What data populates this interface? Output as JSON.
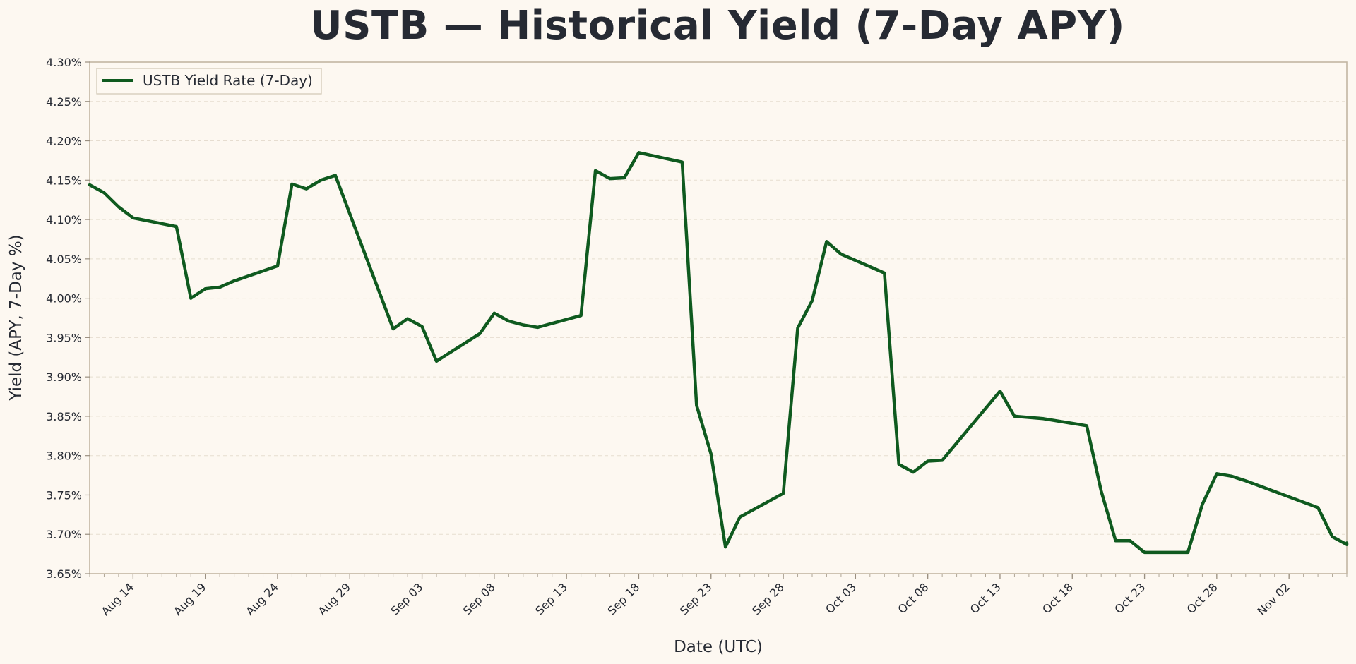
{
  "chart_data": {
    "type": "line",
    "title": "USTB — Historical Yield (7-Day APY)",
    "xlabel": "Date (UTC)",
    "ylabel": "Yield (APY, 7-Day %)",
    "ylim": [
      3.65,
      4.3
    ],
    "y_ticks": [
      3.65,
      3.7,
      3.75,
      3.8,
      3.85,
      3.9,
      3.95,
      4.0,
      4.05,
      4.1,
      4.15,
      4.2,
      4.25,
      4.3
    ],
    "y_tick_labels": [
      "3.65%",
      "3.70%",
      "3.75%",
      "3.80%",
      "3.85%",
      "3.90%",
      "3.95%",
      "4.00%",
      "4.05%",
      "4.10%",
      "4.15%",
      "4.20%",
      "4.25%",
      "4.30%"
    ],
    "xlim": [
      "2024-08-11",
      "2024-11-06"
    ],
    "x_ticks": [
      "2024-08-14",
      "2024-08-19",
      "2024-08-24",
      "2024-08-29",
      "2024-09-03",
      "2024-09-08",
      "2024-09-13",
      "2024-09-18",
      "2024-09-23",
      "2024-09-28",
      "2024-10-03",
      "2024-10-08",
      "2024-10-13",
      "2024-10-18",
      "2024-10-23",
      "2024-10-28",
      "2024-11-02"
    ],
    "x_tick_labels": [
      "Aug 14",
      "Aug 19",
      "Aug 24",
      "Aug 29",
      "Sep 03",
      "Sep 08",
      "Sep 13",
      "Sep 18",
      "Sep 23",
      "Sep 28",
      "Oct 03",
      "Oct 08",
      "Oct 13",
      "Oct 18",
      "Oct 23",
      "Oct 28",
      "Nov 02"
    ],
    "grid": "horizontal-dashed",
    "legend": "top-left",
    "series": [
      {
        "name": "USTB Yield Rate (7-Day)",
        "color": "#0f5a1f",
        "x": [
          "2024-08-11",
          "2024-08-12",
          "2024-08-13",
          "2024-08-14",
          "2024-08-17",
          "2024-08-18",
          "2024-08-19",
          "2024-08-20",
          "2024-08-21",
          "2024-08-24",
          "2024-08-25",
          "2024-08-26",
          "2024-08-27",
          "2024-08-28",
          "2024-09-01",
          "2024-09-02",
          "2024-09-03",
          "2024-09-04",
          "2024-09-07",
          "2024-09-08",
          "2024-09-09",
          "2024-09-10",
          "2024-09-11",
          "2024-09-14",
          "2024-09-15",
          "2024-09-16",
          "2024-09-17",
          "2024-09-18",
          "2024-09-21",
          "2024-09-22",
          "2024-09-23",
          "2024-09-24",
          "2024-09-25",
          "2024-09-28",
          "2024-09-29",
          "2024-09-30",
          "2024-10-01",
          "2024-10-02",
          "2024-10-05",
          "2024-10-06",
          "2024-10-07",
          "2024-10-08",
          "2024-10-09",
          "2024-10-13",
          "2024-10-14",
          "2024-10-16",
          "2024-10-19",
          "2024-10-20",
          "2024-10-21",
          "2024-10-22",
          "2024-10-23",
          "2024-10-26",
          "2024-10-27",
          "2024-10-28",
          "2024-10-29",
          "2024-10-30",
          "2024-11-04",
          "2024-11-05",
          "2024-11-06",
          "2024-11-07"
        ],
        "values": [
          4.144,
          4.134,
          4.116,
          4.102,
          4.091,
          4.0,
          4.012,
          4.014,
          4.022,
          4.041,
          4.145,
          4.139,
          4.15,
          4.156,
          3.961,
          3.974,
          3.964,
          3.92,
          3.955,
          3.981,
          3.971,
          3.966,
          3.963,
          3.978,
          4.162,
          4.152,
          4.153,
          4.185,
          4.173,
          3.864,
          3.802,
          3.684,
          3.722,
          3.752,
          3.962,
          3.997,
          4.072,
          4.056,
          4.032,
          3.789,
          3.779,
          3.793,
          3.794,
          3.882,
          3.85,
          3.847,
          3.838,
          3.755,
          3.692,
          3.692,
          3.677,
          3.677,
          3.738,
          3.777,
          3.774,
          3.768,
          3.734,
          3.697,
          3.687,
          3.689
        ]
      }
    ]
  }
}
